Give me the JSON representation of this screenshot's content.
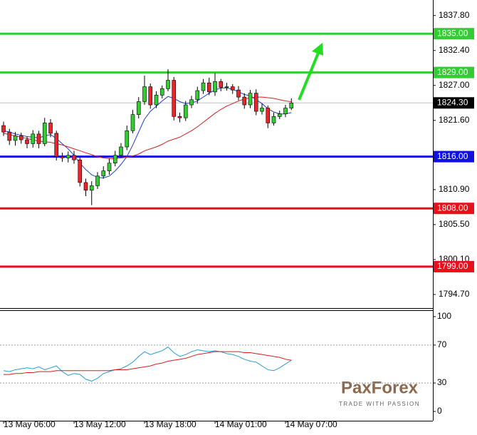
{
  "chart_data": {
    "type": "candlestick",
    "categories": [
      "13 May 06:00",
      null,
      null,
      null,
      null,
      null,
      null,
      null,
      null,
      null,
      null,
      null,
      "13 May 12:00",
      null,
      null,
      null,
      null,
      null,
      null,
      null,
      null,
      null,
      null,
      null,
      "13 May 18:00",
      null,
      null,
      null,
      null,
      null,
      null,
      null,
      null,
      null,
      null,
      null,
      "14 May 01:00",
      null,
      null,
      null,
      null,
      null,
      null,
      null,
      null,
      null,
      null,
      null,
      "14 May 07:00",
      null
    ],
    "open": [
      1820.8,
      1819.8,
      1818.5,
      1819.2,
      1818.6,
      1818.0,
      1819.5,
      1818.0,
      1821.2,
      1819.6,
      1816.0,
      1815.8,
      1816.2,
      1815.5,
      1812.0,
      1810.8,
      1811.5,
      1813.0,
      1813.8,
      1815.0,
      1816.2,
      1817.5,
      1820.0,
      1822.5,
      1824.5,
      1826.8,
      1824.0,
      1825.5,
      1826.5,
      1827.8,
      1822.2,
      1822.0,
      1824.0,
      1824.8,
      1826.2,
      1827.4,
      1826.0,
      1827.6,
      1826.7,
      1826.8,
      1826.3,
      1825.2,
      1824.0,
      1825.8,
      1823.0,
      1823.5,
      1821.2,
      1822.2,
      1822.6,
      1823.5
    ],
    "high": [
      1821.4,
      1820.3,
      1819.8,
      1819.7,
      1819.1,
      1820.1,
      1820.0,
      1822.0,
      1821.8,
      1820.0,
      1816.6,
      1816.8,
      1816.9,
      1815.9,
      1812.6,
      1812.2,
      1813.6,
      1814.5,
      1815.7,
      1816.9,
      1818.1,
      1820.8,
      1823.2,
      1825.2,
      1828.5,
      1827.3,
      1826.1,
      1827.0,
      1829.5,
      1828.3,
      1822.8,
      1824.6,
      1825.4,
      1826.8,
      1828.0,
      1828.2,
      1828.9,
      1828.0,
      1827.4,
      1827.2,
      1826.9,
      1825.8,
      1826.3,
      1826.4,
      1824.2,
      1823.9,
      1822.8,
      1823.1,
      1824.0,
      1825.0
    ],
    "low": [
      1819.2,
      1817.8,
      1817.7,
      1818.0,
      1817.3,
      1817.4,
      1817.3,
      1817.6,
      1819.0,
      1815.4,
      1815.2,
      1815.1,
      1814.9,
      1811.4,
      1809.9,
      1808.5,
      1811.0,
      1812.6,
      1813.2,
      1814.5,
      1816.0,
      1817.0,
      1819.6,
      1821.9,
      1824.0,
      1823.4,
      1823.5,
      1825.0,
      1826.1,
      1821.6,
      1821.3,
      1821.5,
      1823.5,
      1824.2,
      1825.7,
      1825.5,
      1825.4,
      1826.1,
      1826.2,
      1825.7,
      1824.7,
      1823.4,
      1823.5,
      1822.4,
      1822.5,
      1820.4,
      1820.8,
      1821.8,
      1822.1,
      1823.2
    ],
    "close": [
      1819.8,
      1818.5,
      1819.2,
      1818.6,
      1818.0,
      1819.5,
      1818.0,
      1821.2,
      1819.6,
      1816.0,
      1815.8,
      1816.2,
      1815.5,
      1812.0,
      1810.8,
      1811.5,
      1813.0,
      1813.8,
      1815.0,
      1816.2,
      1817.5,
      1820.0,
      1822.5,
      1824.5,
      1826.8,
      1824.0,
      1825.5,
      1826.5,
      1827.8,
      1822.2,
      1822.0,
      1824.0,
      1824.8,
      1826.2,
      1827.4,
      1826.0,
      1827.6,
      1826.7,
      1826.8,
      1826.3,
      1825.2,
      1824.0,
      1825.8,
      1823.0,
      1823.5,
      1821.2,
      1822.2,
      1822.6,
      1823.5,
      1824.3
    ],
    "up_color": "#33cc33",
    "down_color": "#e8262b",
    "moving_averages": [
      {
        "color": "#1f3fcf",
        "values": [
          1820.0,
          1819.8,
          1819.5,
          1819.3,
          1819.1,
          1819.0,
          1818.9,
          1819.2,
          1819.4,
          1818.8,
          1818.0,
          1817.2,
          1816.2,
          1815.0,
          1814.0,
          1813.2,
          1812.8,
          1812.7,
          1813.0,
          1813.8,
          1814.8,
          1816.0,
          1817.8,
          1819.8,
          1821.8,
          1823.0,
          1823.8,
          1824.6,
          1825.3,
          1825.0,
          1824.5,
          1824.2,
          1824.3,
          1824.6,
          1825.2,
          1825.8,
          1826.3,
          1826.6,
          1826.6,
          1826.4,
          1826.0,
          1825.6,
          1825.4,
          1824.8,
          1824.2,
          1823.4,
          1822.9,
          1822.6,
          1822.6,
          1822.8
        ]
      },
      {
        "color": "#d42020",
        "values": [
          1819.6,
          1819.4,
          1819.2,
          1819.0,
          1818.8,
          1818.6,
          1818.4,
          1818.3,
          1818.2,
          1818.0,
          1817.8,
          1817.5,
          1817.2,
          1816.9,
          1816.6,
          1816.3,
          1816.0,
          1815.8,
          1815.7,
          1815.7,
          1815.8,
          1815.9,
          1816.1,
          1816.4,
          1816.9,
          1817.2,
          1817.5,
          1817.9,
          1818.4,
          1818.7,
          1819.0,
          1819.5,
          1820.0,
          1820.6,
          1821.3,
          1822.0,
          1822.7,
          1823.3,
          1823.8,
          1824.2,
          1824.6,
          1824.9,
          1825.1,
          1825.2,
          1825.2,
          1825.1,
          1825.0,
          1824.8,
          1824.6,
          1824.5
        ]
      }
    ],
    "ylim": [
      1792.6,
      1840.2
    ],
    "yticks": [
      {
        "value": 1837.8,
        "label": "1837.80"
      },
      {
        "value": 1832.4,
        "label": "1832.40"
      },
      {
        "value": 1827,
        "label": "1827.00"
      },
      {
        "value": 1821.6,
        "label": "1821.60"
      },
      {
        "value": 1810.9,
        "label": "1810.90"
      },
      {
        "value": 1805.5,
        "label": "1805.50"
      },
      {
        "value": 1800.1,
        "label": "1800.10"
      },
      {
        "value": 1794.7,
        "label": "1794.70"
      }
    ],
    "current_price": {
      "value": 1824.3,
      "label": "1824.30"
    },
    "levels": [
      {
        "value": 1835,
        "label": "1835.00",
        "color": "#33cc33"
      },
      {
        "value": 1829,
        "label": "1829.00",
        "color": "#33cc33"
      },
      {
        "value": 1816,
        "label": "1816.00",
        "color": "#1010e0"
      },
      {
        "value": 1808,
        "label": "1808.00",
        "color": "#e8101a"
      },
      {
        "value": 1799,
        "label": "1799.00",
        "color": "#e8101a"
      }
    ],
    "indicator": {
      "ylim": [
        -9.8,
        106
      ],
      "yticks": [
        0,
        30,
        70,
        100
      ],
      "dotted_levels": [
        30,
        70
      ],
      "series": [
        {
          "color": "#2a9ad8",
          "values": [
            43,
            42,
            44,
            45,
            46,
            45,
            47,
            44,
            46,
            48,
            42,
            38,
            40,
            39,
            34,
            32,
            35,
            40,
            42,
            44,
            45,
            48,
            52,
            58,
            63,
            60,
            62,
            64,
            68,
            62,
            58,
            60,
            63,
            65,
            64,
            63,
            64,
            63,
            61,
            60,
            58,
            55,
            53,
            52,
            48,
            44,
            43,
            46,
            50,
            54
          ]
        },
        {
          "color": "#d42020",
          "values": [
            39,
            39,
            40,
            40,
            41,
            41,
            42,
            42,
            42,
            43,
            43,
            43,
            43,
            43,
            43,
            43,
            43,
            43,
            43,
            44,
            44,
            44,
            45,
            46,
            47,
            48,
            50,
            51,
            53,
            54,
            55,
            56,
            58,
            60,
            61,
            62,
            63,
            63,
            63,
            63,
            63,
            62,
            62,
            61,
            60,
            59,
            58,
            57,
            55,
            54
          ]
        }
      ]
    }
  },
  "logo": {
    "name": "PaxForex",
    "tagline": "TRADE WITH PASSION"
  }
}
